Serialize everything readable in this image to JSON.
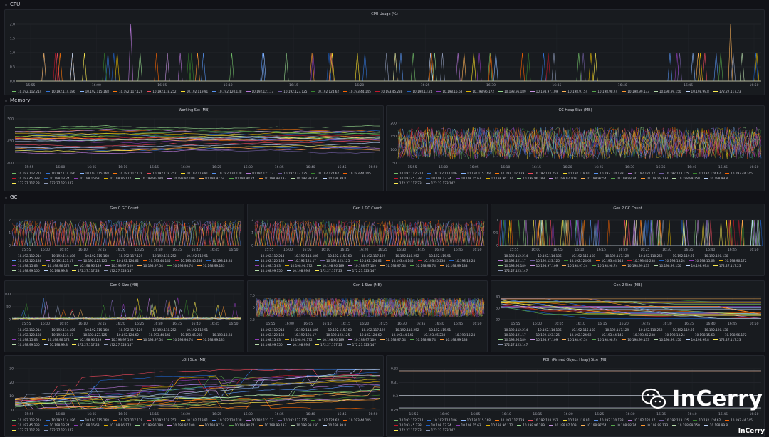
{
  "rows": {
    "cpu": "CPU",
    "memory": "Memory",
    "gc": "GC"
  },
  "ip_list": [
    "10.192.112.214",
    "10.192.114.186",
    "10.192.115.168",
    "10.192.117.129",
    "10.192.118.252",
    "10.192.119.91",
    "10.192.120.138",
    "10.192.121.17",
    "10.192.123.125",
    "10.192.124.62",
    "10.193.44.145",
    "10.193.45.238",
    "10.198.13.24",
    "10.198.15.63",
    "10.198.96.172",
    "10.198.96.189",
    "10.198.97.109",
    "10.198.97.54",
    "10.198.98.74",
    "10.198.99.133",
    "10.198.99.150",
    "10.198.99.8",
    "172.27.117.23",
    "172.27.123.147"
  ],
  "series_colors": [
    "#73bf69",
    "#3274d9",
    "#8ab8ff",
    "#ff780a",
    "#f2495c",
    "#fade2a",
    "#5794f2",
    "#b877d9",
    "#705da0",
    "#37872d",
    "#fa6400",
    "#c4162a",
    "#1f60c4",
    "#8f3bb8",
    "#e0b400",
    "#96d98d",
    "#ca95e5",
    "#ffb357",
    "#56a64b",
    "#ff9830",
    "#b7dbab",
    "#c0d8ff",
    "#ffee52",
    "#8e9ab8"
  ],
  "panels": {
    "cpu": {
      "title": "CPU Usage (%)",
      "y_ticks": [
        "2.0",
        "1.5",
        "1.0",
        "0.5",
        "0.0"
      ],
      "x_ticks": [
        "15:55",
        "16:00",
        "16:05",
        "16:10",
        "16:15",
        "16:20",
        "16:25",
        "16:30",
        "16:35",
        "16:40",
        "16:45",
        "16:50"
      ]
    },
    "working_set": {
      "title": "Working Set (MB)",
      "y_ticks": [
        "500",
        "450",
        "400"
      ],
      "x_ticks": [
        "15:55",
        "16:00",
        "16:05",
        "16:10",
        "16:15",
        "16:20",
        "16:25",
        "16:30",
        "16:35",
        "16:40",
        "16:45",
        "16:50"
      ]
    },
    "gc_heap": {
      "title": "GC Heap Size (MB)",
      "y_ticks": [
        "200",
        "150",
        "100",
        "50"
      ],
      "x_ticks": [
        "15:55",
        "16:00",
        "16:05",
        "16:10",
        "16:15",
        "16:20",
        "16:25",
        "16:30",
        "16:35",
        "16:40",
        "16:45",
        "16:50"
      ]
    },
    "gen0_count": {
      "title": "Gen 0 GC Count",
      "y_ticks": [
        "2",
        "1",
        "0"
      ],
      "x_ticks": [
        "15:55",
        "16:00",
        "16:05",
        "16:10",
        "16:15",
        "16:20",
        "16:25",
        "16:30",
        "16:35",
        "16:40",
        "16:45",
        "16:50"
      ]
    },
    "gen1_count": {
      "title": "Gen 1 GC Count",
      "y_ticks": [
        "2",
        "1",
        "0"
      ],
      "x_ticks": [
        "15:55",
        "16:00",
        "16:05",
        "16:10",
        "16:15",
        "16:20",
        "16:25",
        "16:30",
        "16:35",
        "16:40",
        "16:45",
        "16:50"
      ]
    },
    "gen2_count": {
      "title": "Gen 2 GC Count",
      "y_ticks": [
        "1",
        "0.5",
        "0"
      ],
      "x_ticks": [
        "15:55",
        "16:00",
        "16:05",
        "16:10",
        "16:15",
        "16:20",
        "16:25",
        "16:30",
        "16:35",
        "16:40",
        "16:45",
        "16:50"
      ]
    },
    "gen0_size": {
      "title": "Gen 0 Size (MB)",
      "y_ticks": [
        "100",
        "50",
        "0"
      ],
      "x_ticks": [
        "15:55",
        "16:00",
        "16:05",
        "16:10",
        "16:15",
        "16:20",
        "16:25",
        "16:30",
        "16:35",
        "16:40",
        "16:45",
        "16:50"
      ]
    },
    "gen1_size": {
      "title": "Gen 1 Size (MB)",
      "y_ticks": [
        "7.5",
        "5",
        "2.5"
      ],
      "x_ticks": [
        "15:55",
        "16:00",
        "16:05",
        "16:10",
        "16:15",
        "16:20",
        "16:25",
        "16:30",
        "16:35",
        "16:40",
        "16:45",
        "16:50"
      ]
    },
    "gen2_size": {
      "title": "Gen 2 Size (MB)",
      "y_ticks": [
        "40",
        "30",
        "20"
      ],
      "x_ticks": [
        "15:55",
        "16:00",
        "16:05",
        "16:10",
        "16:15",
        "16:20",
        "16:25",
        "16:30",
        "16:35",
        "16:40",
        "16:45",
        "16:50"
      ]
    },
    "loh": {
      "title": "LOH Size (MB)",
      "y_ticks": [
        "30",
        "20",
        "10",
        "0"
      ],
      "x_ticks": [
        "15:55",
        "16:00",
        "16:05",
        "16:10",
        "16:15",
        "16:20",
        "16:25",
        "16:30",
        "16:35",
        "16:40",
        "16:45",
        "16:50"
      ]
    },
    "poh": {
      "title": "POH (Pinned Object Heap) Size (MB)",
      "y_ticks": [
        "0.32",
        "0.31",
        "0.3",
        "0.29"
      ],
      "x_ticks": [
        "15:55",
        "16:00",
        "16:05",
        "16:10",
        "16:15",
        "16:20",
        "16:25",
        "16:30",
        "16:35",
        "16:40",
        "16:45",
        "16:50"
      ]
    }
  },
  "watermark": {
    "brand": "InCerry",
    "corner": "InCerry"
  }
}
